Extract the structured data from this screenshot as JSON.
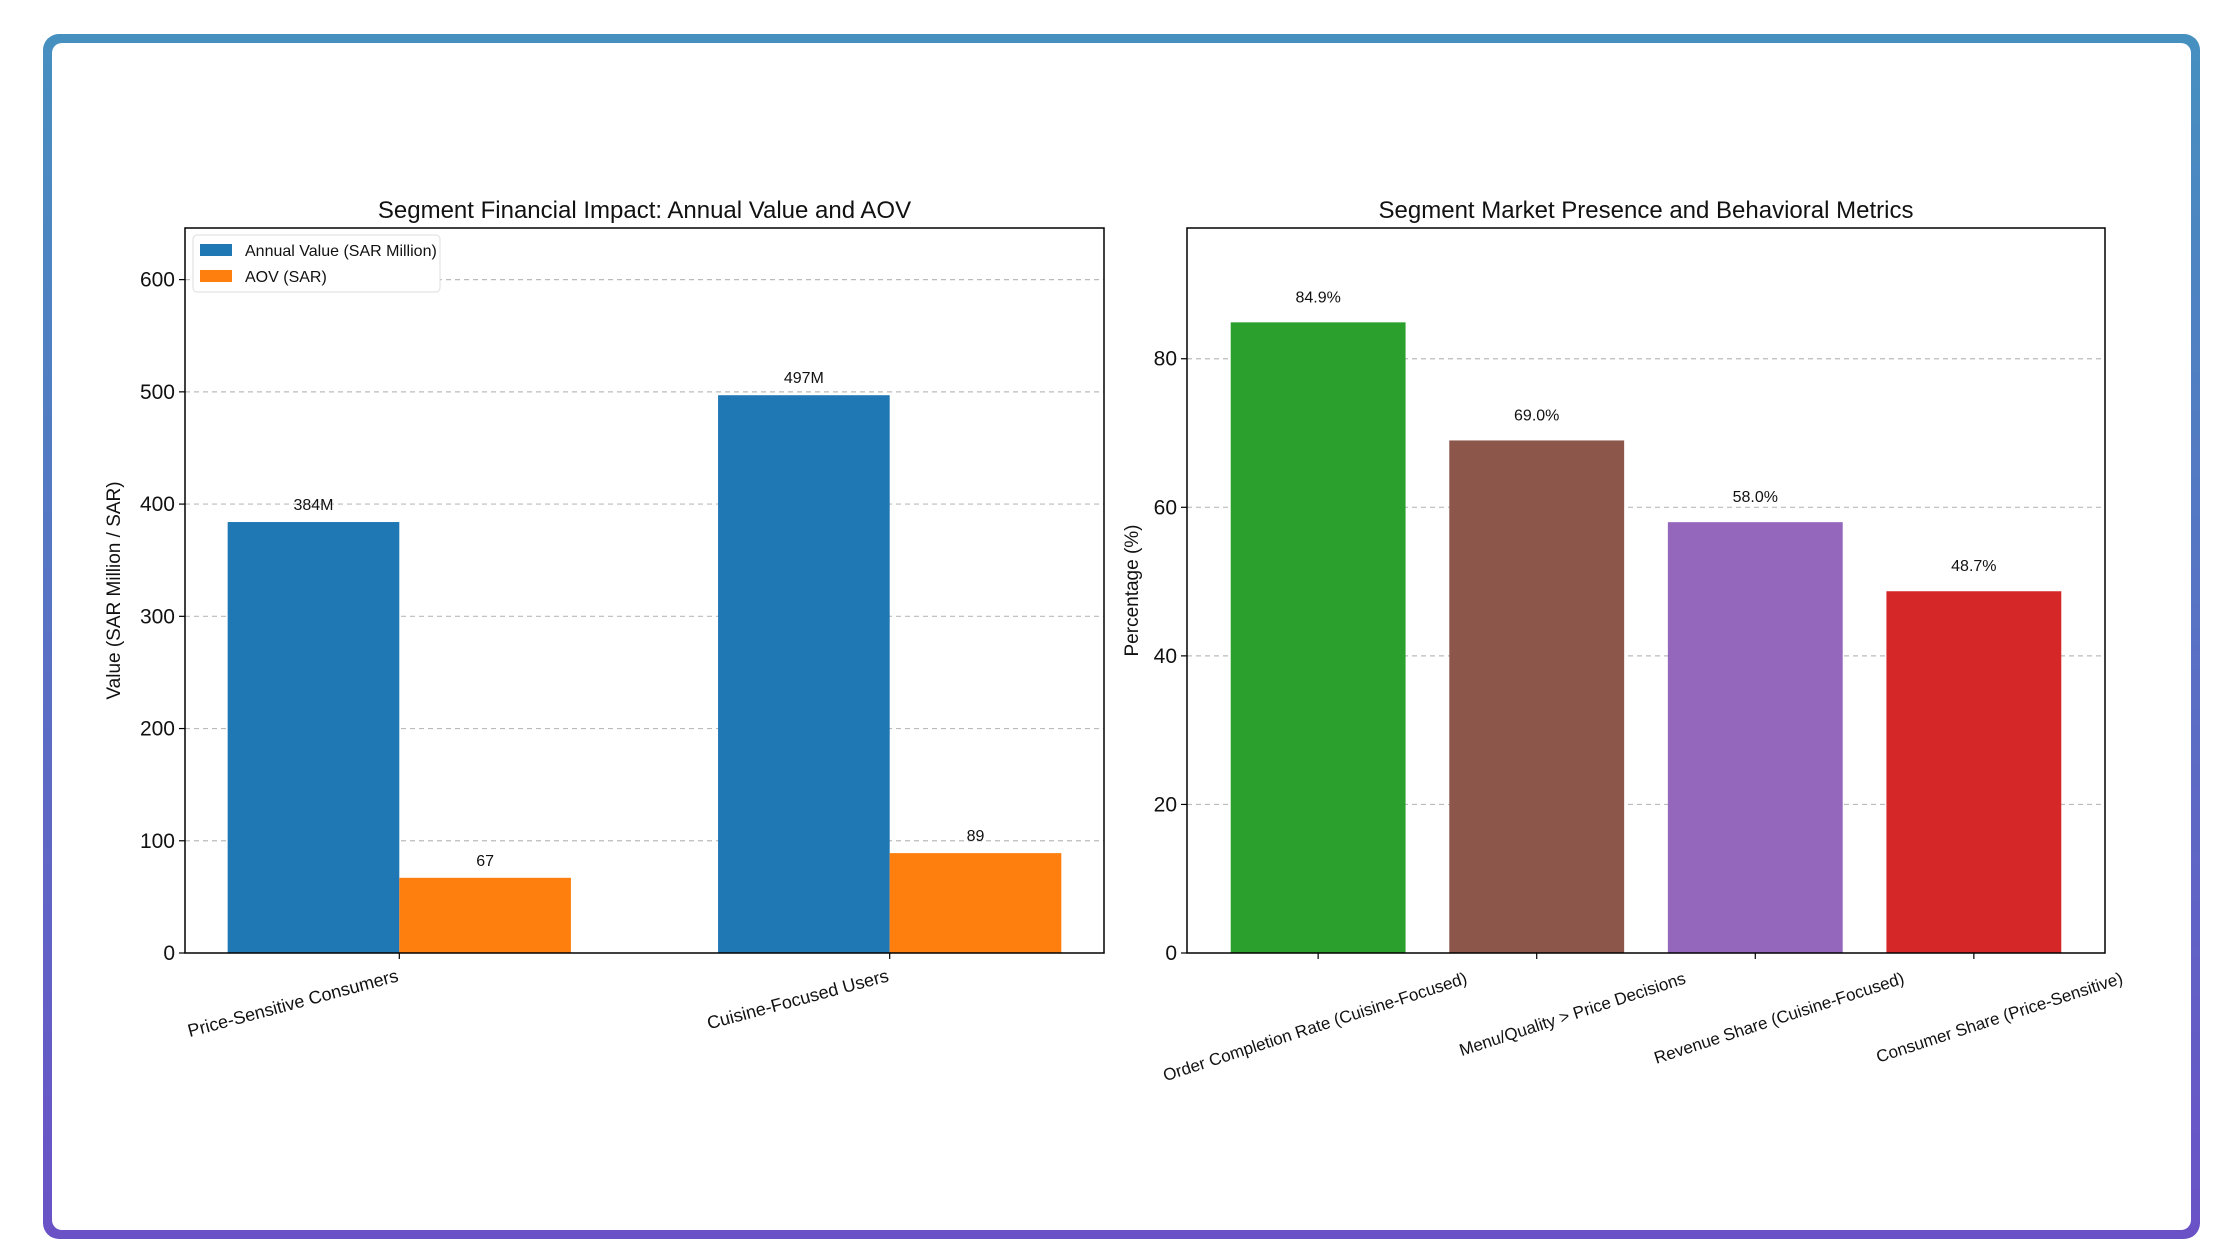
{
  "chart_data": [
    {
      "type": "bar",
      "title": "Segment Financial Impact: Annual Value and AOV",
      "xlabel": "",
      "ylabel": "Value (SAR Million / SAR)",
      "categories": [
        "Price-Sensitive Consumers",
        "Cuisine-Focused Users"
      ],
      "series": [
        {
          "name": "Annual Value (SAR Million)",
          "values": [
            384,
            497
          ],
          "labels": [
            "384M",
            "497M"
          ],
          "color": "#1f77b4"
        },
        {
          "name": "AOV (SAR)",
          "values": [
            67,
            89
          ],
          "labels": [
            "67",
            "89"
          ],
          "color": "#ff7f0e"
        }
      ],
      "ylim": [
        0,
        646
      ],
      "yticks": [
        0,
        100,
        200,
        300,
        400,
        500,
        600
      ],
      "grid": "y, dashed",
      "legend": "top-left"
    },
    {
      "type": "bar",
      "title": "Segment Market Presence and Behavioral Metrics",
      "xlabel": "",
      "ylabel": "Percentage (%)",
      "categories": [
        "Order Completion Rate (Cuisine-Focused)",
        "Menu/Quality > Price Decisions",
        "Revenue Share (Cuisine-Focused)",
        "Consumer Share (Price-Sensitive)"
      ],
      "values": [
        84.9,
        69.0,
        58.0,
        48.7
      ],
      "labels": [
        "84.9%",
        "69.0%",
        "58.0%",
        "48.7%"
      ],
      "colors": [
        "#2ca02c",
        "#8c564b",
        "#9467bd",
        "#d62728"
      ],
      "ylim": [
        0,
        97.6
      ],
      "yticks": [
        0,
        20,
        40,
        60,
        80
      ],
      "grid": "y, dashed"
    }
  ]
}
